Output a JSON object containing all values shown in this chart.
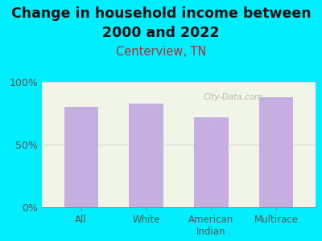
{
  "title_line1": "Change in household income between",
  "title_line2": "2000 and 2022",
  "subtitle": "Centerview, TN",
  "categories": [
    "All",
    "White",
    "American\nIndian",
    "Multirace"
  ],
  "values": [
    80,
    83,
    72,
    88
  ],
  "bar_color": "#c5aee0",
  "background_outer": "#00eeff",
  "background_inner": "#f0f5e8",
  "title_fontsize": 12.5,
  "subtitle_fontsize": 10.5,
  "subtitle_color": "#b03030",
  "tick_label_color": "#555555",
  "ylim": [
    0,
    100
  ],
  "yticks": [
    0,
    50,
    100
  ],
  "ytick_labels": [
    "0%",
    "50%",
    "100%"
  ],
  "watermark": "City-Data.com",
  "grid_color": "#d8d8d8"
}
